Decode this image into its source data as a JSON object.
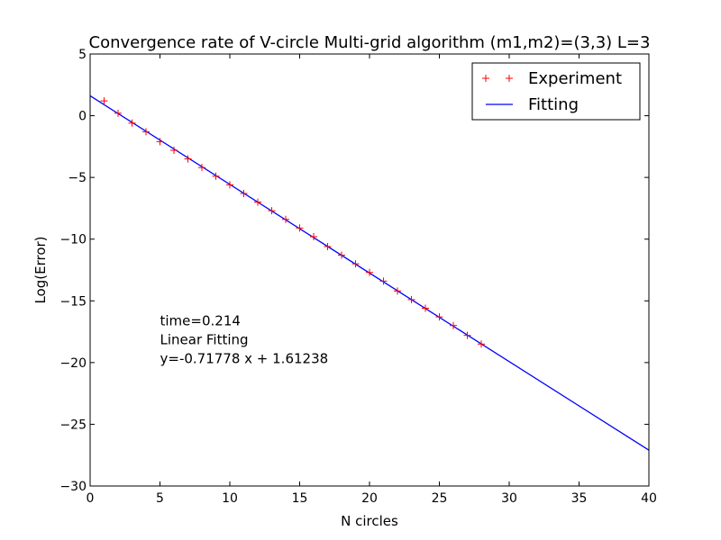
{
  "chart_data": {
    "type": "line",
    "title": "Convergence rate of V-circle Multi-grid algorithm (m1,m2)=(3,3) L=3",
    "xlabel": "N circles",
    "ylabel": "Log(Error)",
    "xlim": [
      0,
      40
    ],
    "ylim": [
      -30,
      5
    ],
    "xticks": [
      0,
      5,
      10,
      15,
      20,
      25,
      30,
      35,
      40
    ],
    "yticks": [
      5,
      0,
      -5,
      -10,
      -15,
      -20,
      -25,
      -30
    ],
    "xtick_labels": [
      "0",
      "5",
      "10",
      "15",
      "20",
      "25",
      "30",
      "35",
      "40"
    ],
    "ytick_labels": [
      "5",
      "0",
      "−5",
      "−10",
      "−15",
      "−20",
      "−25",
      "−30"
    ],
    "grid": false,
    "legend_position": "top-right",
    "series": [
      {
        "name": "Experiment",
        "kind": "scatter",
        "marker": "+",
        "color": "#ff0000",
        "x": [
          1,
          2,
          3,
          4,
          5,
          6,
          7,
          8,
          9,
          10,
          11,
          12,
          13,
          14,
          15,
          16,
          17,
          18,
          19,
          20,
          21,
          22,
          23,
          24,
          25,
          26,
          27,
          28
        ],
        "y": [
          1.2,
          0.2,
          -0.6,
          -1.3,
          -2.1,
          -2.8,
          -3.5,
          -4.2,
          -4.9,
          -5.6,
          -6.3,
          -7.0,
          -7.7,
          -8.4,
          -9.1,
          -9.8,
          -10.6,
          -11.3,
          -12.0,
          -12.7,
          -13.4,
          -14.2,
          -14.9,
          -15.6,
          -16.3,
          -17.0,
          -17.8,
          -18.5
        ]
      },
      {
        "name": "Fitting",
        "kind": "line",
        "color": "#0000ff",
        "slope": -0.71778,
        "intercept": 1.61238
      }
    ],
    "annotation": {
      "lines": [
        "time=0.214",
        "Linear Fitting",
        "y=-0.71778 x + 1.61238"
      ],
      "anchor": [
        5,
        -17
      ]
    }
  }
}
